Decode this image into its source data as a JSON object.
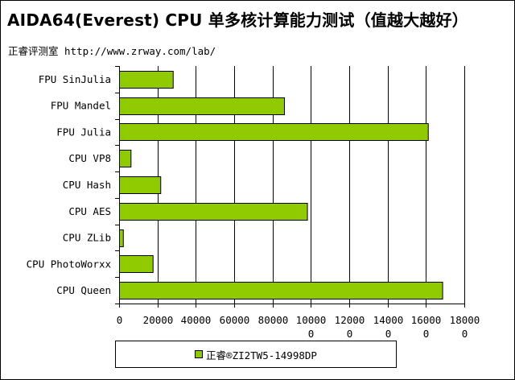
{
  "chart_data": {
    "type": "bar",
    "orientation": "horizontal",
    "title": "AIDA64(Everest) CPU 单多核计算能力测试（值越大越好）",
    "subtitle": "正睿评测室 http://www.zrway.com/lab/",
    "categories": [
      "FPU SinJulia",
      "FPU Mandel",
      "FPU Julia",
      "CPU VP8",
      "CPU Hash",
      "CPU AES",
      "CPU ZLib",
      "CPU PhotoWorxx",
      "CPU Queen"
    ],
    "series": [
      {
        "name": "正睿®ZI2TW5-14998DP",
        "values": [
          28000,
          86000,
          161000,
          6000,
          21500,
          98000,
          2000,
          17500,
          168500
        ]
      }
    ],
    "xlim": [
      0,
      180000
    ],
    "x_ticks": [
      {
        "line1": "0",
        "line2": ""
      },
      {
        "line1": "20000",
        "line2": ""
      },
      {
        "line1": "40000",
        "line2": ""
      },
      {
        "line1": "60000",
        "line2": ""
      },
      {
        "line1": "80000",
        "line2": ""
      },
      {
        "line1": "10000",
        "line2": "0"
      },
      {
        "line1": "12000",
        "line2": "0"
      },
      {
        "line1": "14000",
        "line2": "0"
      },
      {
        "line1": "16000",
        "line2": "0"
      },
      {
        "line1": "18000",
        "line2": "0"
      }
    ],
    "grid": true,
    "legend_position": "bottom",
    "colors": {
      "bar": "#8fcb00",
      "bar_border": "#000000",
      "grid": "#000000"
    }
  }
}
